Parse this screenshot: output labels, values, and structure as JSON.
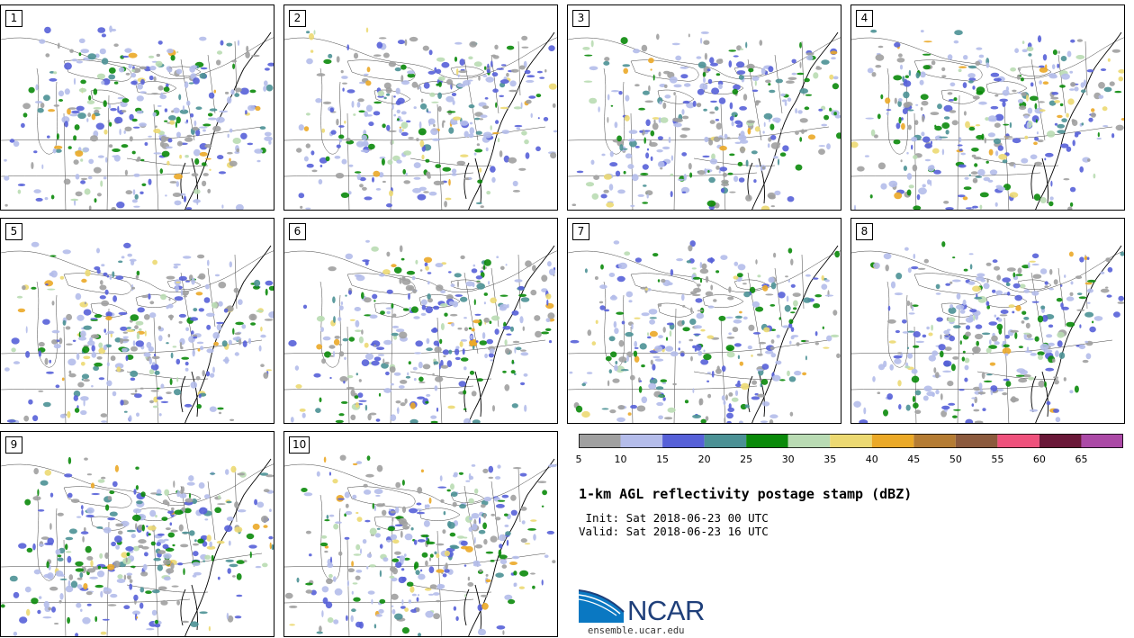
{
  "panels": [
    {
      "label": "1"
    },
    {
      "label": "2"
    },
    {
      "label": "3"
    },
    {
      "label": "4"
    },
    {
      "label": "5"
    },
    {
      "label": "6"
    },
    {
      "label": "7"
    },
    {
      "label": "8"
    },
    {
      "label": "9"
    },
    {
      "label": "10"
    }
  ],
  "colorbar": {
    "colors": [
      "#a0a0a0",
      "#b4bcea",
      "#5660d8",
      "#4b9195",
      "#0a8a0a",
      "#b9dbb3",
      "#ecd972",
      "#eba927",
      "#b57c33",
      "#8c5a3d",
      "#ef517c",
      "#6a1838",
      "#ab49a6"
    ],
    "ticks": [
      "5",
      "10",
      "15",
      "20",
      "25",
      "30",
      "35",
      "40",
      "45",
      "50",
      "55",
      "60",
      "65"
    ]
  },
  "title": "1-km AGL reflectivity postage stamp (dBZ)",
  "init_line": " Init: Sat 2018-06-23 00 UTC",
  "valid_line": "Valid: Sat 2018-06-23 16 UTC",
  "logo": {
    "text": "NCAR",
    "site": "ensemble.ucar.edu",
    "blue": "#0a78c2",
    "navy": "#1f3f7a"
  }
}
